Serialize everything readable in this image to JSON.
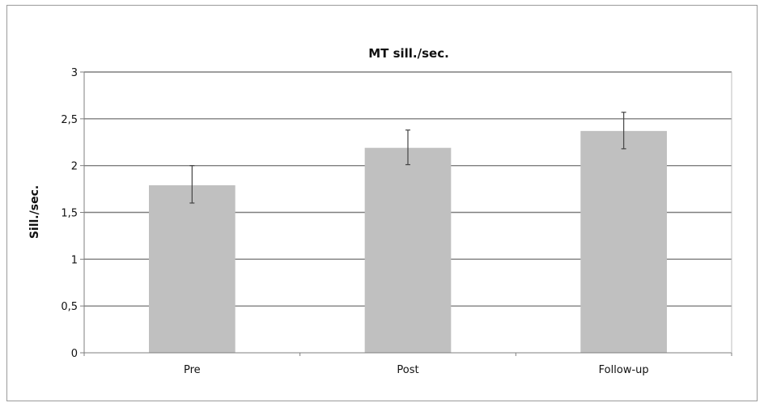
{
  "chart_data": {
    "type": "bar",
    "title": "MT sill./sec.",
    "xlabel": "",
    "ylabel": "Sill./sec.",
    "categories": [
      "Pre",
      "Post",
      "Follow-up"
    ],
    "series": [
      {
        "values": [
          1.79,
          2.19,
          2.37
        ],
        "error_low": [
          1.6,
          2.01,
          2.18
        ],
        "error_high": [
          2.0,
          2.38,
          2.57
        ]
      }
    ],
    "ylim": [
      0,
      3
    ],
    "yticks": [
      0,
      0.5,
      1,
      1.5,
      2,
      2.5,
      3
    ],
    "ytick_labels": [
      "0",
      "0,5",
      "1",
      "1,5",
      "2",
      "2,5",
      "3"
    ],
    "grid": true,
    "legend": "none",
    "colors": {
      "bar": "#c0c0c0",
      "grid": "#7f7f7f",
      "axis": "#7f7f7f",
      "error_bar": "#444444"
    }
  }
}
